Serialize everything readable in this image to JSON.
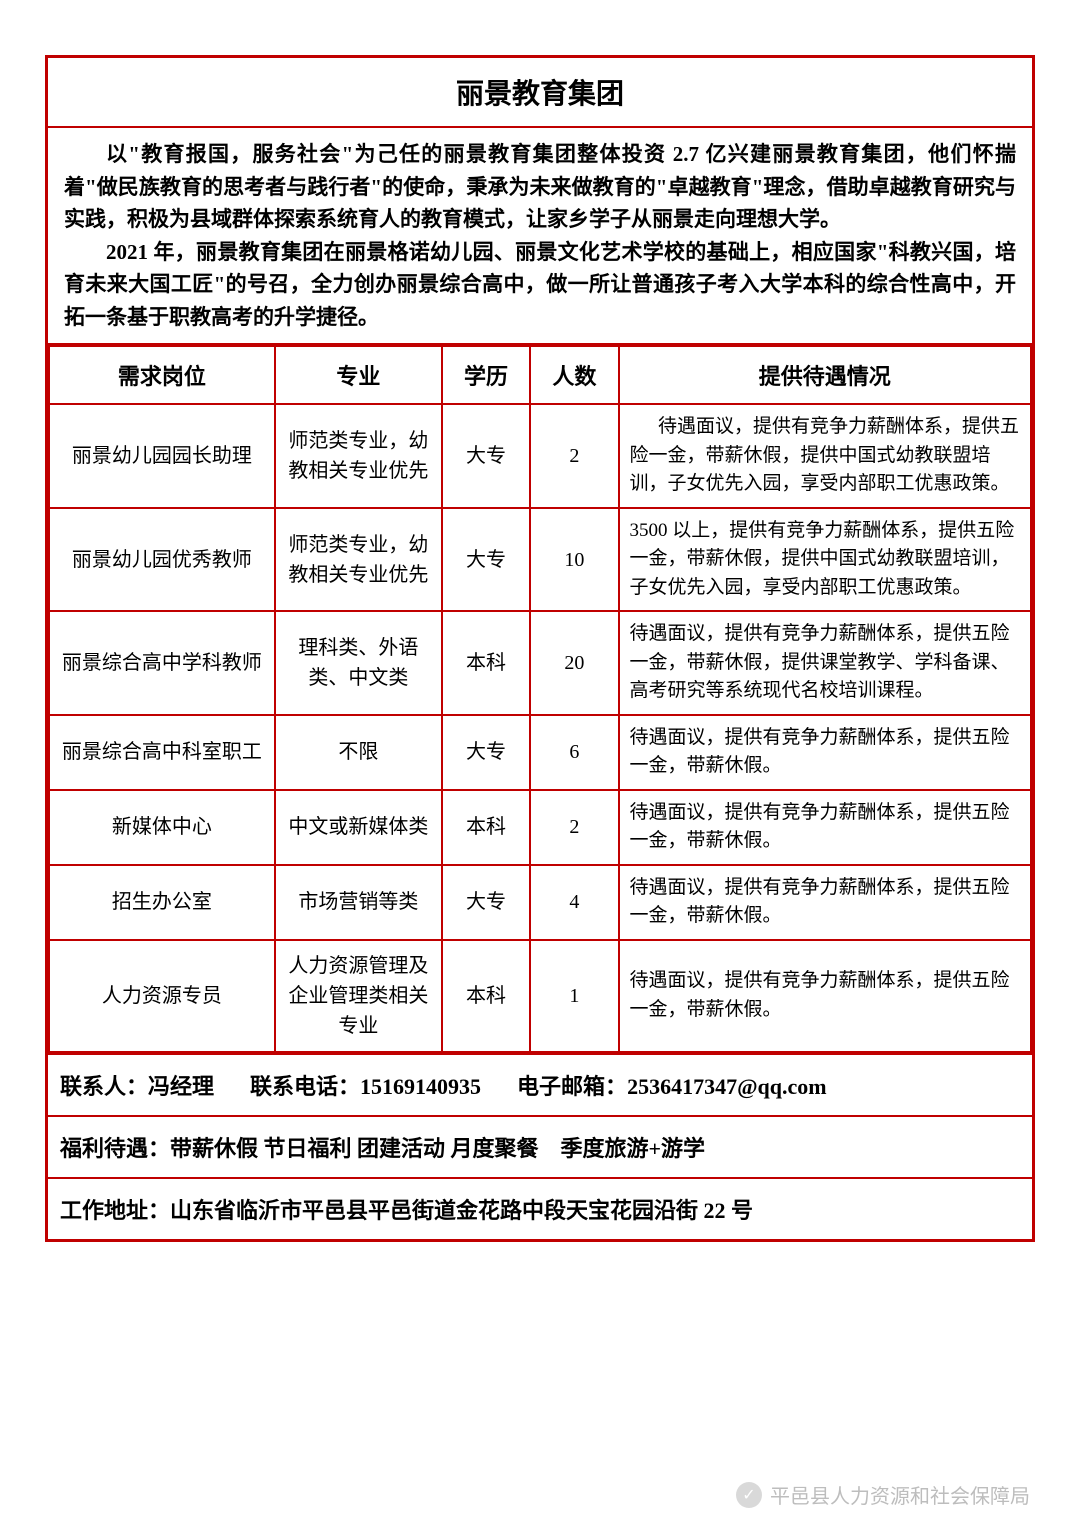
{
  "colors": {
    "border": "#c00000",
    "background": "#ffffff",
    "text": "#000000",
    "watermark": "#888888"
  },
  "typography": {
    "title_fontsize": 28,
    "intro_fontsize": 21,
    "header_fontsize": 22,
    "cell_fontsize": 20,
    "benefit_fontsize": 19,
    "footer_fontsize": 22,
    "font_family": "SimSun"
  },
  "layout": {
    "col_widths_percent": [
      23,
      17,
      9,
      9,
      42
    ]
  },
  "title": "丽景教育集团",
  "intro": {
    "p1": "以\"教育报国，服务社会\"为己任的丽景教育集团整体投资 2.7 亿兴建丽景教育集团，他们怀揣着\"做民族教育的思考者与践行者\"的使命，秉承为未来做教育的\"卓越教育\"理念，借助卓越教育研究与实践，积极为县域群体探索系统育人的教育模式，让家乡学子从丽景走向理想大学。",
    "p2": "2021 年，丽景教育集团在丽景格诺幼儿园、丽景文化艺术学校的基础上，相应国家\"科教兴国，培育未来大国工匠\"的号召，全力创办丽景综合高中，做一所让普通孩子考入大学本科的综合性高中，开拓一条基于职教高考的升学捷径。"
  },
  "headers": {
    "position": "需求岗位",
    "major": "专业",
    "education": "学历",
    "count": "人数",
    "benefit": "提供待遇情况"
  },
  "rows": [
    {
      "position": "丽景幼儿园园长助理",
      "major": "师范类专业，幼教相关专业优先",
      "education": "大专",
      "count": "2",
      "benefit": "待遇面议，提供有竞争力薪酬体系，提供五险一金，带薪休假，提供中国式幼教联盟培训，子女优先入园，享受内部职工优惠政策。",
      "benefit_indent": true
    },
    {
      "position": "丽景幼儿园优秀教师",
      "major": "师范类专业，幼教相关专业优先",
      "education": "大专",
      "count": "10",
      "benefit": "3500 以上，提供有竞争力薪酬体系，提供五险一金，带薪休假，提供中国式幼教联盟培训，子女优先入园，享受内部职工优惠政策。",
      "benefit_indent": false
    },
    {
      "position": "丽景综合高中学科教师",
      "major": "理科类、外语类、中文类",
      "education": "本科",
      "count": "20",
      "benefit": "待遇面议，提供有竞争力薪酬体系，提供五险一金，带薪休假，提供课堂教学、学科备课、高考研究等系统现代名校培训课程。",
      "benefit_indent": false
    },
    {
      "position": "丽景综合高中科室职工",
      "major": "不限",
      "education": "大专",
      "count": "6",
      "benefit": "待遇面议，提供有竞争力薪酬体系，提供五险一金，带薪休假。",
      "benefit_indent": false
    },
    {
      "position": "新媒体中心",
      "major": "中文或新媒体类",
      "education": "本科",
      "count": "2",
      "benefit": "待遇面议，提供有竞争力薪酬体系，提供五险一金，带薪休假。",
      "benefit_indent": false
    },
    {
      "position": "招生办公室",
      "major": "市场营销等类",
      "education": "大专",
      "count": "4",
      "benefit": "待遇面议，提供有竞争力薪酬体系，提供五险一金，带薪休假。",
      "benefit_indent": false
    },
    {
      "position": "人力资源专员",
      "major": "人力资源管理及企业管理类相关专业",
      "education": "本科",
      "count": "1",
      "benefit": "待遇面议，提供有竞争力薪酬体系，提供五险一金，带薪休假。",
      "benefit_indent": false
    }
  ],
  "contact": {
    "person_label": "联系人：",
    "person": "冯经理",
    "phone_label": "联系电话：",
    "phone": "15169140935",
    "email_label": "电子邮箱：",
    "email": "2536417347@qq.com"
  },
  "welfare": {
    "label": "福利待遇：",
    "text": "带薪休假  节日福利  团建活动  月度聚餐　季度旅游+游学"
  },
  "address": {
    "label": "工作地址：",
    "text": "山东省临沂市平邑县平邑街道金花路中段天宝花园沿街 22 号"
  },
  "watermark": {
    "icon": "✓",
    "text": "平邑县人力资源和社会保障局"
  }
}
